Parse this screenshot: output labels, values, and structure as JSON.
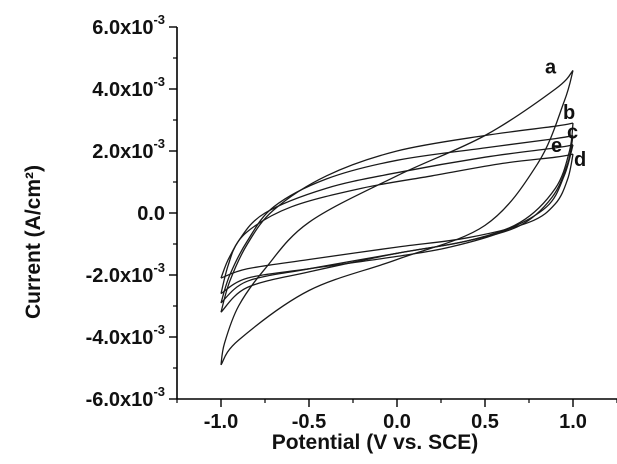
{
  "chart_data": {
    "type": "line",
    "title": "",
    "xlabel": "Potential (V vs. SCE)",
    "ylabel": "Current (A/cm²)",
    "xlim": [
      -1.25,
      1.25
    ],
    "ylim": [
      -0.006,
      0.006
    ],
    "x_ticks": [
      "-1.0",
      "-0.5",
      "0.0",
      "0.5",
      "1.0"
    ],
    "y_ticks": [
      {
        "mantissa": "6.0",
        "exp": "-3"
      },
      {
        "mantissa": "4.0",
        "exp": "-3"
      },
      {
        "mantissa": "2.0",
        "exp": "-3"
      },
      {
        "mantissa": "0.0",
        "exp": ""
      },
      {
        "mantissa": "-2.0",
        "exp": "-3"
      },
      {
        "mantissa": "-4.0",
        "exp": "-3"
      },
      {
        "mantissa": "-6.0",
        "exp": "-3"
      }
    ],
    "x_tick_values": [
      -1.0,
      -0.5,
      0.0,
      0.5,
      1.0
    ],
    "y_tick_values": [
      0.006,
      0.004,
      0.002,
      0.0,
      -0.002,
      -0.004,
      -0.006
    ],
    "grid": false,
    "legend": "none",
    "series": [
      {
        "name": "a",
        "forward": [
          [
            -1.0,
            -0.0049
          ],
          [
            -0.98,
            -0.0042
          ],
          [
            -0.9,
            -0.003
          ],
          [
            -0.75,
            -0.0018
          ],
          [
            -0.5,
            -0.0003
          ],
          [
            0.0,
            0.0012
          ],
          [
            0.5,
            0.0025
          ],
          [
            0.9,
            0.004
          ],
          [
            1.0,
            0.0046
          ]
        ],
        "reverse": [
          [
            1.0,
            0.0046
          ],
          [
            0.95,
            0.0036
          ],
          [
            0.8,
            0.0016
          ],
          [
            0.5,
            -0.0004
          ],
          [
            0.0,
            -0.0015
          ],
          [
            -0.5,
            -0.0025
          ],
          [
            -0.9,
            -0.0041
          ],
          [
            -1.0,
            -0.0049
          ]
        ]
      },
      {
        "name": "b",
        "forward": [
          [
            -1.0,
            -0.0032
          ],
          [
            -0.95,
            -0.0022
          ],
          [
            -0.85,
            -0.001
          ],
          [
            -0.7,
            0.0001
          ],
          [
            -0.4,
            0.0012
          ],
          [
            0.0,
            0.002
          ],
          [
            0.5,
            0.0025
          ],
          [
            0.9,
            0.0028
          ],
          [
            1.0,
            0.0029
          ]
        ],
        "reverse": [
          [
            1.0,
            0.0029
          ],
          [
            0.98,
            0.002
          ],
          [
            0.9,
            0.0008
          ],
          [
            0.7,
            -0.0003
          ],
          [
            0.4,
            -0.0009
          ],
          [
            0.0,
            -0.0013
          ],
          [
            -0.5,
            -0.0019
          ],
          [
            -0.85,
            -0.0024
          ],
          [
            -1.0,
            -0.0032
          ]
        ]
      },
      {
        "name": "c",
        "forward": [
          [
            -1.0,
            -0.0029
          ],
          [
            -0.95,
            -0.002
          ],
          [
            -0.85,
            -0.0009
          ],
          [
            -0.7,
            0.0002
          ],
          [
            -0.4,
            0.0011
          ],
          [
            0.0,
            0.0017
          ],
          [
            0.5,
            0.0021
          ],
          [
            0.9,
            0.0024
          ],
          [
            1.0,
            0.0025
          ]
        ],
        "reverse": [
          [
            1.0,
            0.0025
          ],
          [
            0.97,
            0.0016
          ],
          [
            0.88,
            0.0005
          ],
          [
            0.7,
            -0.0004
          ],
          [
            0.4,
            -0.0009
          ],
          [
            0.0,
            -0.0013
          ],
          [
            -0.5,
            -0.0018
          ],
          [
            -0.85,
            -0.0022
          ],
          [
            -1.0,
            -0.0029
          ]
        ]
      },
      {
        "name": "d",
        "forward": [
          [
            -1.0,
            -0.0021
          ],
          [
            -0.95,
            -0.0014
          ],
          [
            -0.85,
            -0.0006
          ],
          [
            -0.6,
            0.0002
          ],
          [
            -0.2,
            0.0008
          ],
          [
            0.2,
            0.0012
          ],
          [
            0.6,
            0.0016
          ],
          [
            0.9,
            0.0018
          ],
          [
            1.0,
            0.0019
          ]
        ],
        "reverse": [
          [
            1.0,
            0.0019
          ],
          [
            0.97,
            0.0011
          ],
          [
            0.9,
            0.0003
          ],
          [
            0.75,
            -0.0003
          ],
          [
            0.4,
            -0.0008
          ],
          [
            0.0,
            -0.0011
          ],
          [
            -0.5,
            -0.0015
          ],
          [
            -0.85,
            -0.0018
          ],
          [
            -1.0,
            -0.0021
          ]
        ]
      },
      {
        "name": "e",
        "forward": [
          [
            -1.0,
            -0.0026
          ],
          [
            -0.96,
            -0.0017
          ],
          [
            -0.9,
            -0.0009
          ],
          [
            -0.75,
            0.0
          ],
          [
            -0.4,
            0.0008
          ],
          [
            0.0,
            0.0013
          ],
          [
            0.5,
            0.0018
          ],
          [
            0.9,
            0.0021
          ],
          [
            1.0,
            0.0022
          ]
        ],
        "reverse": [
          [
            1.0,
            0.0022
          ],
          [
            0.95,
            0.0012
          ],
          [
            0.85,
            0.0002
          ],
          [
            0.6,
            -0.0006
          ],
          [
            0.3,
            -0.0011
          ],
          [
            0.0,
            -0.0014
          ],
          [
            -0.5,
            -0.0018
          ],
          [
            -0.85,
            -0.0021
          ],
          [
            -1.0,
            -0.0026
          ]
        ]
      }
    ],
    "curve_labels": [
      {
        "series": "a",
        "text": "a"
      },
      {
        "series": "b",
        "text": "b"
      },
      {
        "series": "c",
        "text": "c"
      },
      {
        "series": "d",
        "text": "d"
      },
      {
        "series": "e",
        "text": "e"
      }
    ],
    "colors": {
      "line": "#1a1a1a",
      "axis": "#000000",
      "background": "#ffffff"
    }
  }
}
